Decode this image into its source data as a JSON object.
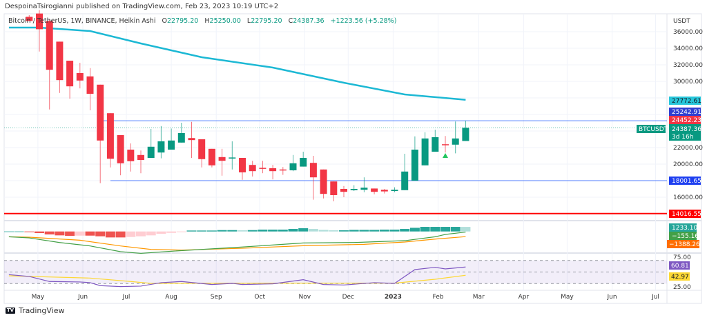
{
  "publisher_line": "DespoinaTsirogianni published on TradingView.com, Feb 23, 2023 10:19 UTC+2",
  "legend": {
    "symbol": "Bitcoin / TetherUS, 1W, BINANCE, Heikin Ashi",
    "o_label": "O",
    "o": "22795.20",
    "h_label": "H",
    "h": "25250.00",
    "l_label": "L",
    "l": "22795.20",
    "c_label": "C",
    "c": "24387.36",
    "change": "+1223.56 (+5.28%)"
  },
  "price_axis": {
    "currency": "USDT",
    "ticks": [
      "36000.00",
      "34000.00",
      "32000.00",
      "30000.00",
      "22000.00",
      "20000.00",
      "16000.00"
    ],
    "tick_values": [
      36000,
      34000,
      32000,
      30000,
      22000,
      20000,
      16000
    ]
  },
  "tags": {
    "ma": "27772.61",
    "resistance": "25242.91",
    "high_mark": "24452.23",
    "symbol": "BTCUSDT",
    "last": "24387.36",
    "countdown": "3d 16h",
    "support": "18001.65",
    "floor": "14016.55",
    "macd_hist": "1233.10",
    "macd": "−155.16",
    "signal": "−1388.26",
    "rsi_upper": "75.00",
    "rsi": "60.81",
    "rsi_ma": "42.97",
    "rsi_lower": "25.00"
  },
  "colors": {
    "up": "#089981",
    "down": "#f23645",
    "ma": "#1cb8d4",
    "hline": "#2962ff",
    "floor": "#ff0000",
    "macd": "#43a047",
    "signal": "#ff9800",
    "rsi": "#7e57c2",
    "rsi_ma": "#fdd835"
  },
  "time_axis": [
    "May",
    "Jun",
    "Jul",
    "Aug",
    "Sep",
    "Oct",
    "Nov",
    "Dec",
    "2023",
    "Feb",
    "Mar",
    "Apr",
    "May",
    "Jun",
    "Jul"
  ],
  "footer": {
    "brand": "TradingView"
  },
  "chart_data": {
    "type": "candlestick",
    "style": "Heikin Ashi",
    "interval": "1W",
    "candles": [
      [
        "2022-04-25",
        37800,
        38000,
        37300,
        37300
      ],
      [
        "2022-05-02",
        38200,
        38600,
        33600,
        36300
      ],
      [
        "2022-05-09",
        37300,
        37500,
        26600,
        31400
      ],
      [
        "2022-05-16",
        34800,
        34800,
        28600,
        30150
      ],
      [
        "2022-05-23",
        32500,
        32500,
        27900,
        29400
      ],
      [
        "2022-05-30",
        31000,
        32250,
        29150,
        30100
      ],
      [
        "2022-06-06",
        30600,
        31600,
        26500,
        28500
      ],
      [
        "2022-06-13",
        29600,
        29600,
        17700,
        22850
      ],
      [
        "2022-06-20",
        26150,
        26150,
        19600,
        20650
      ],
      [
        "2022-06-27",
        23500,
        23500,
        18650,
        20100
      ],
      [
        "2022-07-04",
        21750,
        22500,
        19100,
        20350
      ],
      [
        "2022-07-11",
        21100,
        21650,
        18900,
        20500
      ],
      [
        "2022-07-18",
        20750,
        24250,
        20750,
        22100
      ],
      [
        "2022-07-25",
        21400,
        24600,
        20700,
        22750
      ],
      [
        "2022-08-01",
        21750,
        24300,
        21750,
        22850
      ],
      [
        "2022-08-08",
        22600,
        25000,
        22600,
        23750
      ],
      [
        "2022-08-15",
        23150,
        25100,
        20750,
        22900
      ],
      [
        "2022-08-22",
        23000,
        23000,
        19600,
        20600
      ],
      [
        "2022-08-29",
        21850,
        21850,
        19600,
        19850
      ],
      [
        "2022-09-05",
        20850,
        21850,
        18600,
        20400
      ],
      [
        "2022-09-12",
        20700,
        22750,
        19350,
        20800
      ],
      [
        "2022-09-19",
        20750,
        20750,
        18100,
        19000
      ],
      [
        "2022-09-26",
        19900,
        20400,
        18500,
        19150
      ],
      [
        "2022-10-03",
        19550,
        20400,
        18900,
        19450
      ],
      [
        "2022-10-10",
        19500,
        19900,
        18150,
        19150
      ],
      [
        "2022-10-17",
        19350,
        19650,
        18700,
        19250
      ],
      [
        "2022-10-24",
        19250,
        21100,
        19150,
        20100
      ],
      [
        "2022-10-31",
        19700,
        21500,
        19700,
        20750
      ],
      [
        "2022-11-07",
        20150,
        21000,
        15700,
        18400
      ],
      [
        "2022-11-14",
        19350,
        19350,
        15850,
        16400
      ],
      [
        "2022-11-21",
        17900,
        17900,
        15500,
        16250
      ],
      [
        "2022-11-28",
        17000,
        17350,
        16000,
        16650
      ],
      [
        "2022-12-05",
        16850,
        17450,
        16750,
        17000
      ],
      [
        "2022-12-12",
        16900,
        18400,
        16600,
        17150
      ],
      [
        "2022-12-19",
        17050,
        17050,
        16350,
        16650
      ],
      [
        "2022-12-26",
        16900,
        17000,
        16450,
        16700
      ],
      [
        "2023-01-02",
        16750,
        17200,
        16600,
        16900
      ],
      [
        "2023-01-09",
        16850,
        21250,
        16850,
        19100
      ],
      [
        "2023-01-16",
        18000,
        23350,
        18000,
        21750
      ],
      [
        "2023-01-23",
        19850,
        23850,
        19850,
        23100
      ],
      [
        "2023-01-30",
        21500,
        24150,
        21500,
        23250
      ],
      [
        "2023-02-06",
        22400,
        23400,
        21400,
        22350
      ],
      [
        "2023-02-13",
        22350,
        25150,
        21300,
        23100
      ],
      [
        "2023-02-20",
        22795.2,
        25250,
        22795.2,
        24387.36
      ]
    ],
    "moving_average": [
      [
        "2022-04-11",
        36500
      ],
      [
        "2022-05-02",
        36500
      ],
      [
        "2022-06-06",
        36083
      ],
      [
        "2022-07-11",
        34583
      ],
      [
        "2022-08-22",
        32917
      ],
      [
        "2022-10-10",
        31667
      ],
      [
        "2022-11-28",
        29833
      ],
      [
        "2023-01-09",
        28417
      ],
      [
        "2023-02-20",
        27772.61
      ]
    ],
    "horizontal_lines": [
      {
        "value": 25242.91,
        "from": "2022-06-13",
        "color": "blue"
      },
      {
        "value": 18001.65,
        "from": "2022-06-20",
        "color": "blue"
      },
      {
        "value": 14016.55,
        "from": "2022-04-11",
        "color": "red"
      }
    ],
    "signal_marker": {
      "date": "2023-02-06",
      "value": 21000,
      "shape": "triangle-up",
      "color": "#22c55e"
    },
    "macd": {
      "hist_start": "2022-04-11",
      "histogram": [
        10,
        10,
        -190,
        -430,
        -800,
        -1050,
        -1180,
        -1120,
        -1120,
        -1300,
        -1610,
        -1610,
        -1490,
        -1300,
        -1050,
        -620,
        -370,
        -190,
        250,
        250,
        250,
        370,
        370,
        310,
        370,
        500,
        500,
        500,
        680,
        870,
        680,
        430,
        310,
        310,
        430,
        430,
        430,
        500,
        500,
        680,
        990,
        1240,
        1240,
        1240,
        1240,
        1233.1
      ],
      "macd_line": [
        [
          "2022-04-11",
          -1430
        ],
        [
          "2022-04-25",
          -1740
        ],
        [
          "2022-05-16",
          -2980
        ],
        [
          "2022-06-06",
          -3900
        ],
        [
          "2022-06-27",
          -5450
        ],
        [
          "2022-07-11",
          -5900
        ],
        [
          "2022-08-01",
          -5330
        ],
        [
          "2022-08-22",
          -4840
        ],
        [
          "2022-09-19",
          -4200
        ],
        [
          "2022-10-31",
          -3100
        ],
        [
          "2022-12-05",
          -2980
        ],
        [
          "2023-01-09",
          -2480
        ],
        [
          "2023-01-30",
          -1430
        ],
        [
          "2023-02-06",
          -800
        ],
        [
          "2023-02-20",
          -155.16
        ]
      ],
      "signal_line": [
        [
          "2022-04-11",
          -1430
        ],
        [
          "2022-04-25",
          -1550
        ],
        [
          "2022-05-30",
          -2360
        ],
        [
          "2022-06-27",
          -3900
        ],
        [
          "2022-07-18",
          -4840
        ],
        [
          "2022-08-08",
          -5020
        ],
        [
          "2022-09-19",
          -4530
        ],
        [
          "2022-10-31",
          -3840
        ],
        [
          "2022-12-12",
          -3470
        ],
        [
          "2023-01-09",
          -2850
        ],
        [
          "2023-01-30",
          -2050
        ],
        [
          "2023-02-20",
          -1388.26
        ]
      ]
    },
    "rsi": {
      "upper": 75,
      "middle": 50,
      "lower": 25,
      "rsi_line": [
        [
          "2022-04-11",
          44.3
        ],
        [
          "2022-04-25",
          40.4
        ],
        [
          "2022-05-09",
          29.5
        ],
        [
          "2022-05-30",
          28.5
        ],
        [
          "2022-06-06",
          27
        ],
        [
          "2022-06-13",
          20.6
        ],
        [
          "2022-06-27",
          18.6
        ],
        [
          "2022-07-11",
          19.6
        ],
        [
          "2022-07-25",
          27
        ],
        [
          "2022-08-08",
          29.5
        ],
        [
          "2022-08-29",
          23
        ],
        [
          "2022-09-12",
          25.5
        ],
        [
          "2022-09-19",
          23
        ],
        [
          "2022-10-10",
          24.5
        ],
        [
          "2022-10-31",
          33.4
        ],
        [
          "2022-11-14",
          23
        ],
        [
          "2022-11-28",
          22
        ],
        [
          "2022-12-19",
          27
        ],
        [
          "2023-01-02",
          25.5
        ],
        [
          "2023-01-16",
          55.2
        ],
        [
          "2023-01-30",
          60.1
        ],
        [
          "2023-02-06",
          56.7
        ],
        [
          "2023-02-20",
          60.81
        ]
      ],
      "rsi_ma": [
        [
          "2022-04-11",
          41.8
        ],
        [
          "2022-06-06",
          36.9
        ],
        [
          "2022-07-04",
          29.5
        ],
        [
          "2022-07-18",
          25.5
        ],
        [
          "2022-10-31",
          26
        ],
        [
          "2023-01-02",
          26
        ],
        [
          "2023-01-30",
          34.4
        ],
        [
          "2023-02-20",
          42.97
        ]
      ]
    }
  }
}
